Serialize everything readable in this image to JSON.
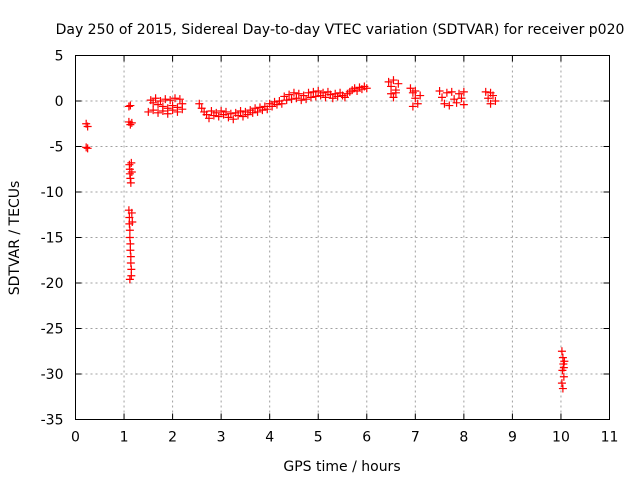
{
  "chart_data": {
    "type": "scatter",
    "title": "Day 250 of 2015, Sidereal Day-to-day VTEC variation (SDTVAR) for receiver p020",
    "xlabel": "GPS time / hours",
    "ylabel": "SDTVAR / TECUs",
    "xlim": [
      0,
      11
    ],
    "ylim": [
      -35,
      5
    ],
    "xticks": [
      0,
      1,
      2,
      3,
      4,
      5,
      6,
      7,
      8,
      9,
      10,
      11
    ],
    "yticks": [
      5,
      0,
      -5,
      -10,
      -15,
      -20,
      -25,
      -30,
      -35
    ],
    "grid": true,
    "marker": "+",
    "series": [
      {
        "name": "p020",
        "color": "#ff0000",
        "points": [
          [
            0.22,
            -2.5
          ],
          [
            0.25,
            -2.8
          ],
          [
            0.22,
            -5.1
          ],
          [
            0.25,
            -5.2
          ],
          [
            1.1,
            -0.6
          ],
          [
            1.13,
            -0.5
          ],
          [
            1.1,
            -2.3
          ],
          [
            1.13,
            -2.6
          ],
          [
            1.16,
            -2.4
          ],
          [
            1.11,
            -7.0
          ],
          [
            1.12,
            -7.5
          ],
          [
            1.12,
            -8.0
          ],
          [
            1.13,
            -8.5
          ],
          [
            1.14,
            -9.0
          ],
          [
            1.15,
            -6.8
          ],
          [
            1.16,
            -7.8
          ],
          [
            1.1,
            -12.0
          ],
          [
            1.11,
            -12.8
          ],
          [
            1.11,
            -13.5
          ],
          [
            1.12,
            -14.2
          ],
          [
            1.12,
            -15.0
          ],
          [
            1.13,
            -15.7
          ],
          [
            1.13,
            -16.4
          ],
          [
            1.14,
            -17.1
          ],
          [
            1.14,
            -17.8
          ],
          [
            1.15,
            -18.5
          ],
          [
            1.15,
            -19.2
          ],
          [
            1.12,
            -19.6
          ],
          [
            1.16,
            -12.3
          ],
          [
            1.17,
            -13.3
          ],
          [
            1.55,
            0.1
          ],
          [
            1.6,
            -0.2
          ],
          [
            1.65,
            0.3
          ],
          [
            1.7,
            -0.4
          ],
          [
            1.75,
            0.0
          ],
          [
            1.8,
            -0.6
          ],
          [
            1.85,
            0.2
          ],
          [
            1.9,
            -0.8
          ],
          [
            1.95,
            0.1
          ],
          [
            2.0,
            -0.5
          ],
          [
            2.05,
            0.3
          ],
          [
            2.1,
            -0.7
          ],
          [
            2.15,
            0.2
          ],
          [
            2.2,
            -0.3
          ],
          [
            1.5,
            -1.2
          ],
          [
            1.6,
            -1.0
          ],
          [
            1.7,
            -1.3
          ],
          [
            1.8,
            -1.1
          ],
          [
            1.9,
            -1.4
          ],
          [
            2.0,
            -1.0
          ],
          [
            2.1,
            -1.2
          ],
          [
            2.2,
            -0.9
          ],
          [
            2.55,
            -0.3
          ],
          [
            2.6,
            -0.8
          ],
          [
            2.65,
            -1.2
          ],
          [
            2.7,
            -1.5
          ],
          [
            2.75,
            -1.9
          ],
          [
            2.8,
            -1.1
          ],
          [
            2.85,
            -1.6
          ],
          [
            2.9,
            -1.3
          ],
          [
            2.95,
            -1.7
          ],
          [
            3.0,
            -1.1
          ],
          [
            3.05,
            -1.5
          ],
          [
            3.1,
            -1.2
          ],
          [
            3.15,
            -1.8
          ],
          [
            3.2,
            -1.4
          ],
          [
            3.25,
            -2.0
          ],
          [
            3.3,
            -1.3
          ],
          [
            3.35,
            -1.6
          ],
          [
            3.4,
            -1.1
          ],
          [
            3.45,
            -1.7
          ],
          [
            3.5,
            -1.2
          ],
          [
            3.55,
            -1.5
          ],
          [
            3.6,
            -1.0
          ],
          [
            3.65,
            -1.3
          ],
          [
            3.7,
            -0.8
          ],
          [
            3.75,
            -1.2
          ],
          [
            3.8,
            -0.7
          ],
          [
            3.85,
            -1.0
          ],
          [
            3.9,
            -0.6
          ],
          [
            3.95,
            -0.9
          ],
          [
            4.0,
            -0.3
          ],
          [
            4.05,
            -0.6
          ],
          [
            4.1,
            -0.1
          ],
          [
            4.15,
            -0.4
          ],
          [
            4.2,
            0.0
          ],
          [
            4.25,
            -0.3
          ],
          [
            4.3,
            0.5
          ],
          [
            4.35,
            0.1
          ],
          [
            4.4,
            0.7
          ],
          [
            4.45,
            0.2
          ],
          [
            4.5,
            0.9
          ],
          [
            4.55,
            0.3
          ],
          [
            4.6,
            0.8
          ],
          [
            4.65,
            0.1
          ],
          [
            4.7,
            0.6
          ],
          [
            4.75,
            0.2
          ],
          [
            4.8,
            0.9
          ],
          [
            4.85,
            0.4
          ],
          [
            4.9,
            1.0
          ],
          [
            4.95,
            0.5
          ],
          [
            5.0,
            1.1
          ],
          [
            5.05,
            0.6
          ],
          [
            5.1,
            0.9
          ],
          [
            5.15,
            0.4
          ],
          [
            5.2,
            1.0
          ],
          [
            5.25,
            0.7
          ],
          [
            5.3,
            0.3
          ],
          [
            5.35,
            0.8
          ],
          [
            5.4,
            0.5
          ],
          [
            5.45,
            0.9
          ],
          [
            5.5,
            0.6
          ],
          [
            5.55,
            0.4
          ],
          [
            5.6,
            0.8
          ],
          [
            5.65,
            1.0
          ],
          [
            5.7,
            1.2
          ],
          [
            5.75,
            1.4
          ],
          [
            5.8,
            1.1
          ],
          [
            5.85,
            1.5
          ],
          [
            5.9,
            1.3
          ],
          [
            5.95,
            1.6
          ],
          [
            6.0,
            1.4
          ],
          [
            6.45,
            2.1
          ],
          [
            6.5,
            1.6
          ],
          [
            6.55,
            2.3
          ],
          [
            6.6,
            1.2
          ],
          [
            6.65,
            1.9
          ],
          [
            6.5,
            0.8
          ],
          [
            6.55,
            0.4
          ],
          [
            6.6,
            0.9
          ],
          [
            6.9,
            1.4
          ],
          [
            6.95,
            0.9
          ],
          [
            7.0,
            0.3
          ],
          [
            7.05,
            -0.3
          ],
          [
            6.95,
            -0.6
          ],
          [
            7.0,
            1.1
          ],
          [
            7.1,
            0.6
          ],
          [
            7.5,
            1.1
          ],
          [
            7.55,
            0.4
          ],
          [
            7.6,
            -0.3
          ],
          [
            7.65,
            0.9
          ],
          [
            7.7,
            -0.5
          ],
          [
            7.75,
            1.0
          ],
          [
            7.8,
            0.2
          ],
          [
            7.85,
            -0.2
          ],
          [
            7.9,
            0.8
          ],
          [
            7.95,
            0.3
          ],
          [
            8.0,
            1.0
          ],
          [
            8.0,
            -0.4
          ],
          [
            8.45,
            1.0
          ],
          [
            8.5,
            0.3
          ],
          [
            8.55,
            -0.3
          ],
          [
            8.6,
            0.6
          ],
          [
            8.65,
            0.0
          ],
          [
            8.55,
            0.9
          ],
          [
            10.02,
            -27.5
          ],
          [
            10.04,
            -28.2
          ],
          [
            10.05,
            -28.9
          ],
          [
            10.03,
            -29.6
          ],
          [
            10.06,
            -30.3
          ],
          [
            10.02,
            -31.0
          ],
          [
            10.04,
            -31.6
          ],
          [
            10.06,
            -29.3
          ],
          [
            10.07,
            -28.6
          ]
        ]
      }
    ]
  }
}
